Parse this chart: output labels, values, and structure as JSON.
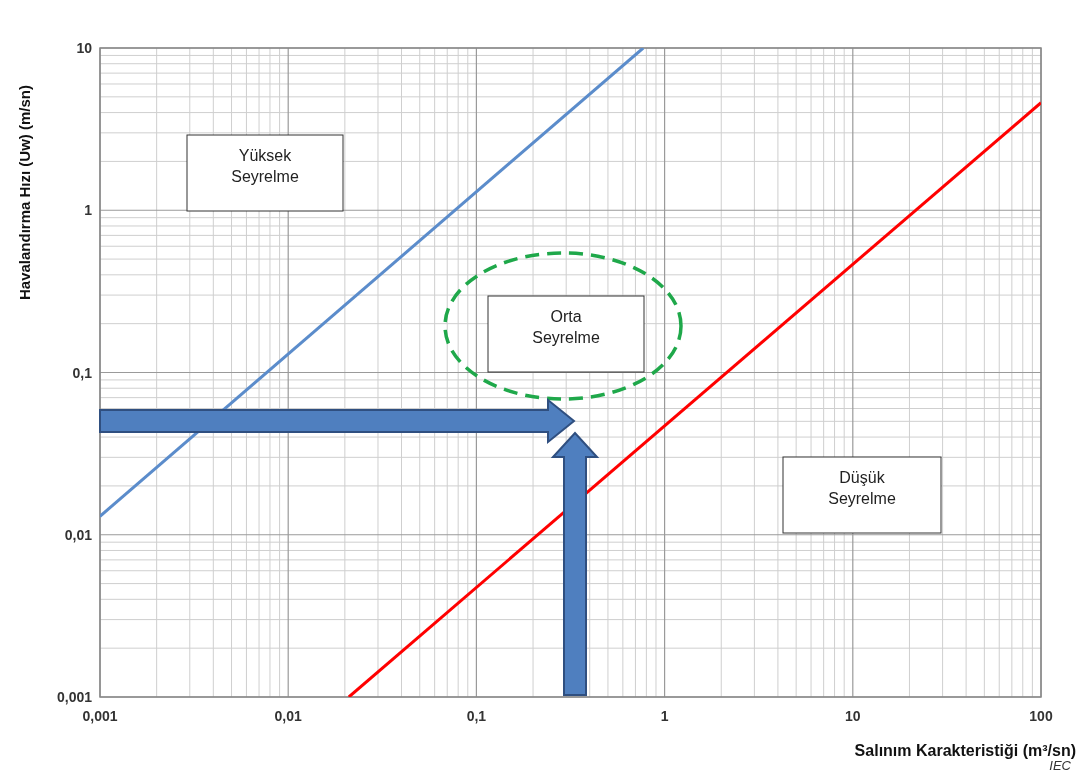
{
  "chart_data": {
    "type": "line",
    "xlabel": "Salınım Karakteristiği (m³/sn)",
    "ylabel": "Havalandırma Hızı (Uw) (m/sn)",
    "log": "xy",
    "grid": true,
    "line_style": "solid",
    "xlim": [
      0.001,
      100
    ],
    "ylim": [
      0.001,
      10
    ],
    "xticks": [
      {
        "value": 0.001,
        "label": "0,001"
      },
      {
        "value": 0.01,
        "label": "0,01"
      },
      {
        "value": 0.1,
        "label": "0,1"
      },
      1,
      10,
      100
    ],
    "yticks": [
      {
        "value": 0.001,
        "label": "0,001"
      },
      {
        "value": 0.01,
        "label": "0,01"
      },
      {
        "value": 0.1,
        "label": "0,1"
      },
      1,
      10
    ],
    "series": [
      {
        "color": "#5b8ccb",
        "x": [
          0.001,
          0.77
        ],
        "values": [
          0.013,
          10
        ]
      },
      {
        "color": "#ff0000",
        "x": [
          0.021,
          100
        ],
        "values": [
          0.001,
          4.6
        ]
      }
    ],
    "annotations": [
      "Yüksek\nSeyrelme",
      "Orta\nSeyrelme",
      "Düşük\nSeyrelme",
      "IEC"
    ]
  }
}
